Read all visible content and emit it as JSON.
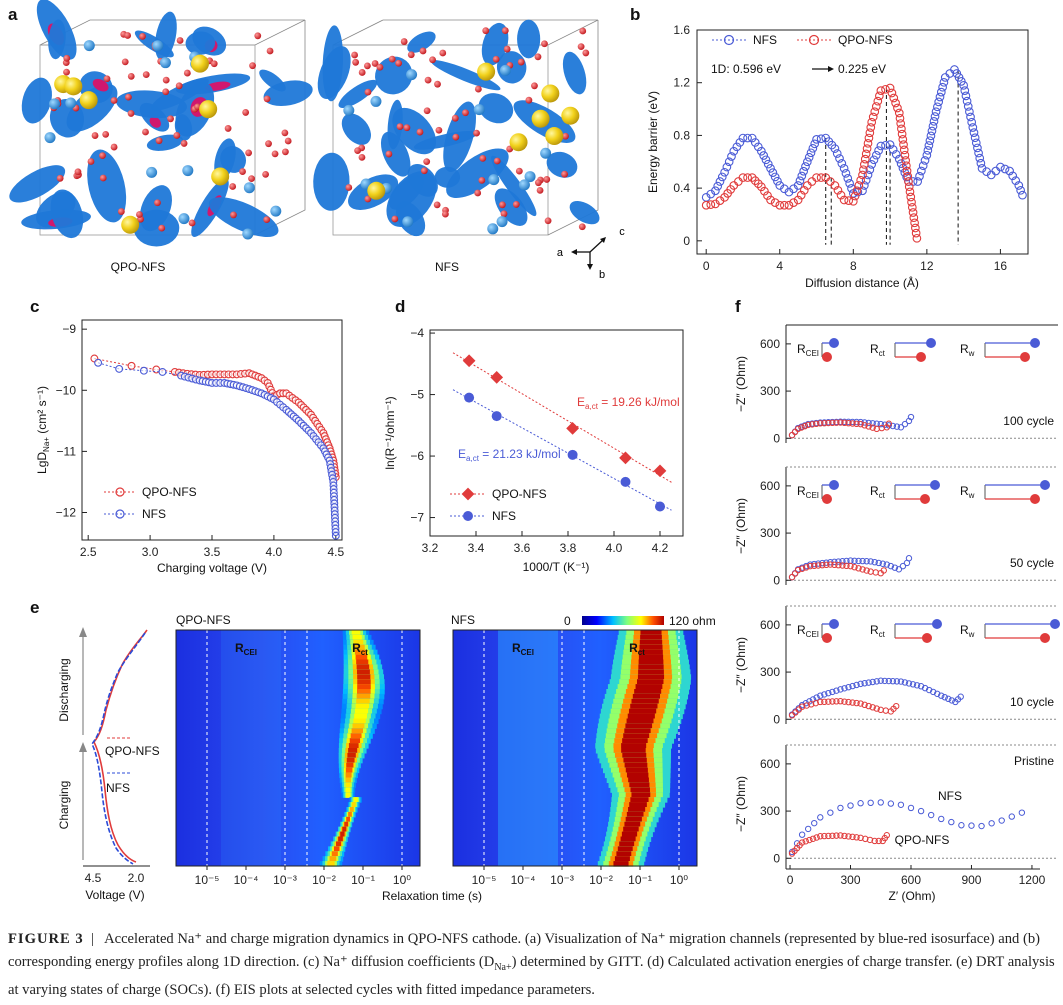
{
  "panels": {
    "a": {
      "label": "a",
      "left_name": "QPO-NFS",
      "right_name": "NFS",
      "axes": {
        "a": "a",
        "b": "b",
        "c": "c"
      }
    },
    "b": {
      "label": "b",
      "ylabel": "Energy barrier (eV)",
      "xlabel": "Diffusion distance (Å)",
      "legend": [
        "NFS",
        "QPO-NFS"
      ],
      "annot_1d": "1D:  0.596 eV",
      "annot_arrow": "→",
      "annot_val": "0.225 eV",
      "xticks": [
        "0",
        "4",
        "8",
        "12",
        "16"
      ],
      "yticks": [
        "0",
        "0.4",
        "0.8",
        "1.2",
        "1.6"
      ]
    },
    "c": {
      "label": "c",
      "ylabel": "LgD",
      "ylabel_sub": "Na+",
      "ylabel_unit": " (cm² s⁻¹)",
      "xlabel": "Charging voltage (V)",
      "legend": [
        "QPO-NFS",
        "NFS"
      ],
      "xticks": [
        "2.5",
        "3.0",
        "3.5",
        "4.0",
        "4.5"
      ],
      "yticks": [
        "−9",
        "−10",
        "−11",
        "−12"
      ]
    },
    "d": {
      "label": "d",
      "ylabel": "ln(R⁻¹/ohm⁻¹)",
      "xlabel": "1000/T (K⁻¹)",
      "legend": [
        "QPO-NFS",
        "NFS"
      ],
      "fit_q_pre": "E",
      "fit_q_sub": "a,ct",
      "fit_q_post": " = 19.26 kJ/mol",
      "fit_n_pre": "E",
      "fit_n_sub": "a,ct",
      "fit_n_post": " = 21.23 kJ/mol",
      "xticks": [
        "3.2",
        "3.4",
        "3.6",
        "3.8",
        "4.0",
        "4.2"
      ],
      "yticks": [
        "−4",
        "−5",
        "−6",
        "−7"
      ]
    },
    "e": {
      "label": "e",
      "map_left": "QPO-NFS",
      "map_right": "NFS",
      "colorbar_min": "0",
      "colorbar_max": "120 ohm",
      "rcei": "R",
      "rcei_sub": "CEI",
      "rct": "R",
      "rct_sub": "ct",
      "xlabel": "Relaxation time (s)",
      "xticks": [
        "10⁻⁵",
        "10⁻⁴",
        "10⁻³",
        "10⁻²",
        "10⁻¹",
        "10⁰"
      ],
      "charging": "Charging",
      "discharging": "Discharging",
      "volt_label": "Voltage (V)",
      "volt_ticks": [
        "4.5",
        "2.0"
      ],
      "legend": [
        "QPO-NFS",
        "NFS"
      ]
    },
    "f": {
      "label": "f",
      "ylabel": "−Z″ (Ohm)",
      "xlabel": "Z′ (Ohm)",
      "xticks": [
        "0",
        "300",
        "600",
        "900",
        "1200"
      ],
      "subplots": [
        "100 cycle",
        "50 cycle",
        "10 cycle",
        "Pristine"
      ],
      "circuit": [
        "R",
        "R",
        "R"
      ],
      "circuit_sub": [
        "CEI",
        "ct",
        "w"
      ],
      "pristine_labels": [
        "NFS",
        "QPO-NFS"
      ]
    }
  },
  "colors": {
    "nfs": "#4a5bd6",
    "qpo": "#e03b3b"
  },
  "caption": {
    "figure": "FIGURE  3",
    "sep": "|",
    "text": "Accelerated Na⁺ and charge migration dynamics in QPO-NFS cathode. (a) Visualization of Na⁺ migration channels (represented by blue-red isosurface) and (b) corresponding energy profiles along 1D direction. (c) Na⁺ diffusion coefficients (D",
    "text_sub": "Na+",
    "text_end": ") determined by GITT. (d) Calculated activation energies of charge transfer. (e) DRT analysis at varying states of charge (SOCs). (f) EIS plots at selected cycles with fitted impedance parameters."
  },
  "chart_data": [
    {
      "type": "scatter",
      "panel": "b",
      "xlabel": "Diffusion distance (Å)",
      "ylabel": "Energy barrier (eV)",
      "xlim": [
        -0.5,
        17.5
      ],
      "ylim": [
        -0.1,
        1.6
      ],
      "series": [
        {
          "name": "NFS",
          "x": [
            0,
            0.5,
            1,
            1.5,
            2,
            2.5,
            3,
            3.5,
            4,
            4.5,
            5,
            5.5,
            6,
            6.5,
            7,
            7.5,
            8,
            8.5,
            9,
            9.5,
            10,
            10.5,
            11,
            11.5,
            12,
            12.5,
            13,
            13.5,
            14,
            14.5,
            15,
            15.5,
            16,
            16.5,
            17,
            17.3
          ],
          "y": [
            0.33,
            0.38,
            0.52,
            0.68,
            0.78,
            0.78,
            0.68,
            0.55,
            0.42,
            0.37,
            0.42,
            0.6,
            0.77,
            0.78,
            0.7,
            0.55,
            0.36,
            0.38,
            0.58,
            0.72,
            0.73,
            0.62,
            0.45,
            0.45,
            0.65,
            0.98,
            1.24,
            1.3,
            1.18,
            0.86,
            0.55,
            0.5,
            0.56,
            0.53,
            0.42,
            0.31
          ]
        },
        {
          "name": "QPO-NFS",
          "x": [
            0,
            0.5,
            1,
            1.5,
            2,
            2.5,
            3,
            3.5,
            4,
            4.5,
            5,
            5.5,
            6,
            6.5,
            7,
            7.5,
            8,
            8.5,
            9,
            9.5,
            10,
            10.5,
            11,
            11.5
          ],
          "y": [
            0.27,
            0.28,
            0.33,
            0.42,
            0.48,
            0.48,
            0.41,
            0.31,
            0.27,
            0.27,
            0.31,
            0.42,
            0.48,
            0.48,
            0.42,
            0.31,
            0.3,
            0.5,
            0.9,
            1.14,
            1.16,
            0.97,
            0.45,
            -0.02
          ]
        }
      ]
    },
    {
      "type": "line",
      "panel": "c",
      "xlabel": "Charging voltage (V)",
      "ylabel": "LgD Na+ (cm² s⁻¹)",
      "xlim": [
        2.45,
        4.55
      ],
      "ylim": [
        -12.45,
        -8.85
      ],
      "series": [
        {
          "name": "QPO-NFS",
          "x": [
            2.55,
            2.85,
            3.05,
            3.2,
            3.3,
            3.4,
            3.5,
            3.6,
            3.7,
            3.8,
            3.9,
            3.95,
            4.0,
            4.05,
            4.1,
            4.2,
            4.3,
            4.4,
            4.45,
            4.48,
            4.5
          ],
          "y": [
            -9.48,
            -9.6,
            -9.66,
            -9.7,
            -9.73,
            -9.75,
            -9.74,
            -9.74,
            -9.74,
            -9.72,
            -9.8,
            -9.88,
            -10.1,
            -10.05,
            -10.05,
            -10.2,
            -10.4,
            -10.7,
            -10.95,
            -11.15,
            -11.42
          ]
        },
        {
          "name": "NFS",
          "x": [
            2.58,
            2.75,
            2.95,
            3.1,
            3.25,
            3.4,
            3.5,
            3.6,
            3.7,
            3.8,
            3.9,
            4.0,
            4.1,
            4.2,
            4.3,
            4.4,
            4.45,
            4.48,
            4.5
          ],
          "y": [
            -9.55,
            -9.65,
            -9.68,
            -9.7,
            -9.76,
            -9.84,
            -9.88,
            -9.88,
            -9.92,
            -9.98,
            -10.05,
            -10.15,
            -10.32,
            -10.5,
            -10.7,
            -10.95,
            -11.15,
            -11.5,
            -12.38
          ]
        }
      ]
    },
    {
      "type": "scatter",
      "panel": "d",
      "xlabel": "1000/T (K⁻¹)",
      "ylabel": "ln(R⁻¹/ohm⁻¹)",
      "xlim": [
        3.2,
        4.3
      ],
      "ylim": [
        -7.3,
        -3.95
      ],
      "series": [
        {
          "name": "QPO-NFS",
          "x": [
            3.37,
            3.49,
            3.82,
            4.05,
            4.2
          ],
          "y": [
            -4.45,
            -4.72,
            -5.55,
            -6.03,
            -6.24
          ]
        },
        {
          "name": "NFS",
          "x": [
            3.37,
            3.49,
            3.82,
            4.05,
            4.2
          ],
          "y": [
            -5.05,
            -5.35,
            -5.98,
            -6.42,
            -6.82
          ]
        }
      ]
    },
    {
      "type": "heatmap",
      "panel": "e",
      "xlabel": "Relaxation time (s)",
      "zlim": [
        0,
        120
      ],
      "series": [
        {
          "name": "QPO-NFS"
        },
        {
          "name": "NFS"
        }
      ]
    },
    {
      "type": "scatter",
      "panel": "f",
      "xlabel": "Z′ (Ohm)",
      "ylabel": "−Z″ (Ohm)",
      "xlim": [
        -20,
        1230
      ],
      "ylim": [
        -30,
        720
      ],
      "subplots": [
        {
          "title": "100 cycle",
          "series": [
            {
              "name": "NFS",
              "x": [
                10,
                40,
                90,
                150,
                250,
                350,
                450,
                550,
                590,
                610
              ],
              "y": [
                20,
                65,
                90,
                100,
                105,
                103,
                90,
                70,
                110,
                160
              ]
            },
            {
              "name": "QPO-NFS",
              "x": [
                10,
                40,
                90,
                150,
                250,
                350,
                430,
                480,
                500
              ],
              "y": [
                20,
                60,
                85,
                95,
                100,
                90,
                60,
                70,
                115
              ]
            }
          ]
        },
        {
          "title": "50 cycle",
          "series": [
            {
              "name": "NFS",
              "x": [
                10,
                40,
                100,
                200,
                300,
                400,
                480,
                540,
                580,
                600
              ],
              "y": [
                20,
                70,
                100,
                115,
                125,
                120,
                100,
                70,
                110,
                170
              ]
            },
            {
              "name": "QPO-NFS",
              "x": [
                10,
                40,
                100,
                200,
                300,
                400,
                450,
                480
              ],
              "y": [
                20,
                65,
                90,
                100,
                90,
                55,
                45,
                80
              ]
            }
          ]
        },
        {
          "title": "10 cycle",
          "series": [
            {
              "name": "NFS",
              "x": [
                10,
                60,
                150,
                250,
                350,
                450,
                550,
                650,
                750,
                820,
                860
              ],
              "y": [
                30,
                90,
                150,
                190,
                225,
                245,
                240,
                210,
                150,
                110,
                160
              ]
            },
            {
              "name": "QPO-NFS",
              "x": [
                10,
                60,
                150,
                250,
                350,
                450,
                500,
                540
              ],
              "y": [
                25,
                80,
                110,
                115,
                100,
                60,
                50,
                100
              ]
            }
          ]
        },
        {
          "title": "Pristine",
          "series": [
            {
              "name": "NFS",
              "x": [
                10,
                60,
                150,
                250,
                350,
                450,
                550,
                650,
                750,
                850,
                950,
                1050,
                1150,
                1200
              ],
              "y": [
                40,
                150,
                260,
                320,
                350,
                355,
                340,
                300,
                250,
                210,
                205,
                240,
                290,
                325
              ]
            },
            {
              "name": "QPO-NFS",
              "x": [
                10,
                60,
                150,
                250,
                350,
                420,
                460,
                490
              ],
              "y": [
                30,
                100,
                140,
                145,
                130,
                110,
                110,
                165
              ]
            }
          ]
        }
      ]
    }
  ]
}
